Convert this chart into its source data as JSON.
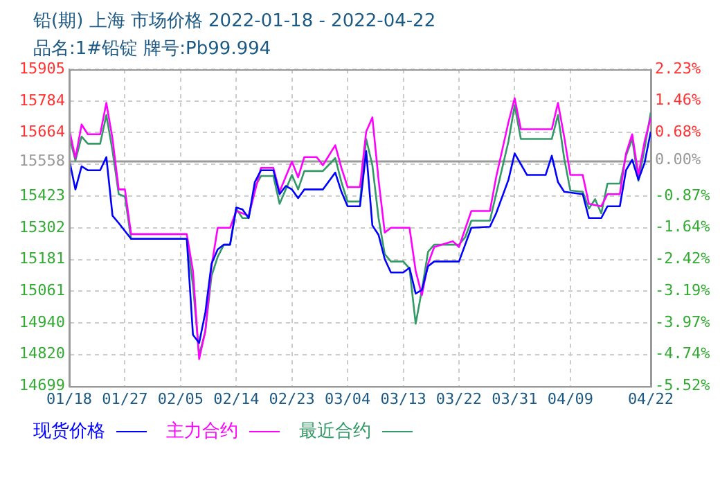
{
  "chart_data": {
    "type": "line",
    "title": "铅(期) 上海 市场价格 2022-01-18 - 2022-04-22",
    "subtitle": "品名:1#铅锭 牌号:Pb99.994",
    "xlim": [
      "2022-01-18",
      "2022-04-22"
    ],
    "xticks": [
      {
        "value": "2022-01-18",
        "label": "01/18"
      },
      {
        "value": "2022-01-27",
        "label": "01/27"
      },
      {
        "value": "2022-02-05",
        "label": "02/05"
      },
      {
        "value": "2022-02-14",
        "label": "02/14"
      },
      {
        "value": "2022-02-23",
        "label": "02/23"
      },
      {
        "value": "2022-03-04",
        "label": "03/04"
      },
      {
        "value": "2022-03-13",
        "label": "03/13"
      },
      {
        "value": "2022-03-22",
        "label": "03/22"
      },
      {
        "value": "2022-03-31",
        "label": "03/31"
      },
      {
        "value": "2022-04-09",
        "label": "04/09"
      },
      {
        "value": "2022-04-22",
        "label": "04/22"
      }
    ],
    "ylim": [
      14699,
      15905
    ],
    "yticks": [
      14699,
      14820,
      14940,
      15061,
      15181,
      15302,
      15423,
      {
        "value": 15543,
        "label": null
      },
      15664,
      15784,
      15905
    ],
    "y2lim": [
      -5.52,
      2.23
    ],
    "y2ticks": [
      {
        "value": -5.52,
        "label": "-5.52%"
      },
      {
        "value": -4.74,
        "label": "-4.74%"
      },
      {
        "value": -3.97,
        "label": "-3.97%"
      },
      {
        "value": -3.19,
        "label": "-3.19%"
      },
      {
        "value": -2.42,
        "label": "-2.42%"
      },
      {
        "value": -1.64,
        "label": "-1.64%"
      },
      {
        "value": -0.87,
        "label": "-0.87%"
      },
      {
        "value": 0,
        "label": "0.00%"
      },
      {
        "value": 0.68,
        "label": "0.68%"
      },
      {
        "value": 1.46,
        "label": "1.46%"
      },
      {
        "value": 2.23,
        "label": "2.23%"
      }
    ],
    "ref_lines": [
      {
        "axis": "y",
        "value": 15558,
        "label": "15558",
        "color": "#999999"
      }
    ],
    "grid": true,
    "legend": "bottom",
    "marker": "none",
    "line_style": "solid",
    "series": [
      {
        "name": "现货价格",
        "color": "#0000ff",
        "x": [
          "2022-01-18",
          "2022-01-19",
          "2022-01-20",
          "2022-01-21",
          "2022-01-23",
          "2022-01-24",
          "2022-01-25",
          "2022-01-26",
          "2022-01-28",
          "2022-02-06",
          "2022-02-07",
          "2022-02-08",
          "2022-02-09",
          "2022-02-10",
          "2022-02-11",
          "2022-02-12",
          "2022-02-13",
          "2022-02-14",
          "2022-02-15",
          "2022-02-16",
          "2022-02-17",
          "2022-02-18",
          "2022-02-20",
          "2022-02-21",
          "2022-02-22",
          "2022-02-23",
          "2022-02-24",
          "2022-02-25",
          "2022-02-28",
          "2022-03-02",
          "2022-03-03",
          "2022-03-04",
          "2022-03-06",
          "2022-03-07",
          "2022-03-08",
          "2022-03-09",
          "2022-03-10",
          "2022-03-11",
          "2022-03-13",
          "2022-03-14",
          "2022-03-15",
          "2022-03-16",
          "2022-03-17",
          "2022-03-18",
          "2022-03-22",
          "2022-03-23",
          "2022-03-24",
          "2022-03-27",
          "2022-03-28",
          "2022-03-30",
          "2022-03-31",
          "2022-04-02",
          "2022-04-05",
          "2022-04-06",
          "2022-04-07",
          "2022-04-08",
          "2022-04-11",
          "2022-04-12",
          "2022-04-14",
          "2022-04-15",
          "2022-04-17",
          "2022-04-18",
          "2022-04-19",
          "2022-04-20",
          "2022-04-21",
          "2022-04-22"
        ],
        "values": [
          15561,
          15448,
          15536,
          15521,
          15521,
          15571,
          15348,
          15320,
          15260,
          15260,
          14895,
          14864,
          14980,
          15165,
          15220,
          15238,
          15238,
          15379,
          15372,
          15339,
          15476,
          15521,
          15521,
          15430,
          15461,
          15448,
          15415,
          15448,
          15448,
          15512,
          15439,
          15384,
          15384,
          15594,
          15311,
          15275,
          15183,
          15132,
          15132,
          15150,
          15052,
          15065,
          15156,
          15174,
          15174,
          15238,
          15302,
          15306,
          15357,
          15485,
          15585,
          15503,
          15503,
          15576,
          15476,
          15439,
          15430,
          15339,
          15339,
          15384,
          15384,
          15521,
          15561,
          15485,
          15549,
          15668
        ]
      },
      {
        "name": "主力合约",
        "color": "#ff00ff",
        "x": [
          "2022-01-18",
          "2022-01-19",
          "2022-01-20",
          "2022-01-21",
          "2022-01-23",
          "2022-01-24",
          "2022-01-25",
          "2022-01-26",
          "2022-01-27",
          "2022-01-28",
          "2022-02-06",
          "2022-02-07",
          "2022-02-08",
          "2022-02-09",
          "2022-02-10",
          "2022-02-11",
          "2022-02-13",
          "2022-02-14",
          "2022-02-16",
          "2022-02-18",
          "2022-02-20",
          "2022-02-21",
          "2022-02-23",
          "2022-02-24",
          "2022-02-25",
          "2022-02-27",
          "2022-02-28",
          "2022-03-02",
          "2022-03-03",
          "2022-03-04",
          "2022-03-06",
          "2022-03-07",
          "2022-03-08",
          "2022-03-09",
          "2022-03-10",
          "2022-03-11",
          "2022-03-14",
          "2022-03-15",
          "2022-03-16",
          "2022-03-17",
          "2022-03-18",
          "2022-03-21",
          "2022-03-22",
          "2022-03-24",
          "2022-03-27",
          "2022-03-28",
          "2022-03-30",
          "2022-03-31",
          "2022-04-01",
          "2022-04-06",
          "2022-04-07",
          "2022-04-08",
          "2022-04-09",
          "2022-04-11",
          "2022-04-12",
          "2022-04-14",
          "2022-04-15",
          "2022-04-17",
          "2022-04-18",
          "2022-04-19",
          "2022-04-20",
          "2022-04-21",
          "2022-04-22"
        ],
        "values": [
          15677,
          15567,
          15695,
          15658,
          15658,
          15777,
          15640,
          15448,
          15448,
          15278,
          15278,
          15138,
          14803,
          14909,
          15156,
          15302,
          15302,
          15366,
          15348,
          15530,
          15530,
          15439,
          15554,
          15494,
          15571,
          15571,
          15540,
          15616,
          15530,
          15457,
          15457,
          15668,
          15722,
          15485,
          15284,
          15302,
          15302,
          15138,
          15046,
          15165,
          15229,
          15251,
          15229,
          15366,
          15366,
          15494,
          15704,
          15795,
          15677,
          15677,
          15777,
          15649,
          15503,
          15503,
          15393,
          15384,
          15430,
          15430,
          15585,
          15658,
          15503,
          15631,
          15722
        ]
      },
      {
        "name": "最近合约",
        "color": "#339966",
        "x": [
          "2022-01-18",
          "2022-01-19",
          "2022-01-20",
          "2022-01-21",
          "2022-01-23",
          "2022-01-24",
          "2022-01-25",
          "2022-01-26",
          "2022-01-27",
          "2022-01-28",
          "2022-02-06",
          "2022-02-07",
          "2022-02-08",
          "2022-02-09",
          "2022-02-10",
          "2022-02-11",
          "2022-02-12",
          "2022-02-13",
          "2022-02-14",
          "2022-02-15",
          "2022-02-16",
          "2022-02-17",
          "2022-02-18",
          "2022-02-20",
          "2022-02-21",
          "2022-02-23",
          "2022-02-24",
          "2022-02-25",
          "2022-02-28",
          "2022-03-02",
          "2022-03-03",
          "2022-03-04",
          "2022-03-06",
          "2022-03-07",
          "2022-03-08",
          "2022-03-09",
          "2022-03-10",
          "2022-03-11",
          "2022-03-13",
          "2022-03-14",
          "2022-03-15",
          "2022-03-16",
          "2022-03-17",
          "2022-03-18",
          "2022-03-22",
          "2022-03-23",
          "2022-03-24",
          "2022-03-27",
          "2022-03-28",
          "2022-03-30",
          "2022-03-31",
          "2022-04-01",
          "2022-04-06",
          "2022-04-07",
          "2022-04-08",
          "2022-04-09",
          "2022-04-11",
          "2022-04-12",
          "2022-04-13",
          "2022-04-14",
          "2022-04-15",
          "2022-04-17",
          "2022-04-18",
          "2022-04-19",
          "2022-04-20",
          "2022-04-21",
          "2022-04-22"
        ],
        "values": [
          15649,
          15558,
          15649,
          15622,
          15622,
          15731,
          15594,
          15430,
          15421,
          15260,
          15260,
          15083,
          14818,
          14909,
          15119,
          15192,
          15238,
          15238,
          15375,
          15339,
          15339,
          15457,
          15499,
          15499,
          15393,
          15503,
          15448,
          15518,
          15518,
          15567,
          15476,
          15402,
          15402,
          15640,
          15540,
          15339,
          15202,
          15174,
          15174,
          15147,
          14937,
          15065,
          15211,
          15238,
          15238,
          15266,
          15329,
          15329,
          15430,
          15631,
          15768,
          15640,
          15640,
          15731,
          15567,
          15444,
          15439,
          15375,
          15411,
          15357,
          15470,
          15470,
          15576,
          15640,
          15481,
          15604,
          15741
        ]
      }
    ]
  }
}
